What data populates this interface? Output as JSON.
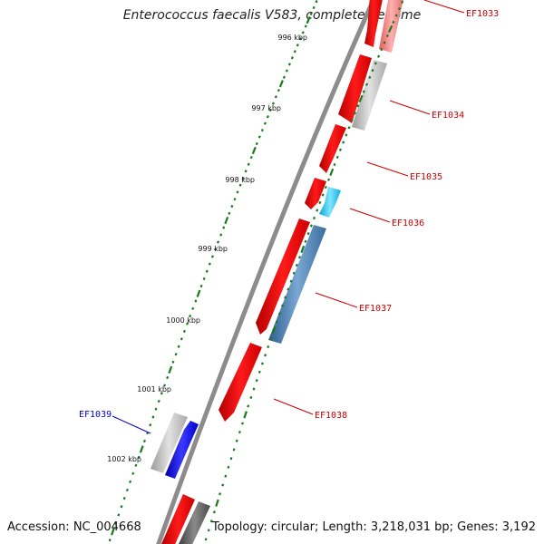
{
  "title": "Enterococcus faecalis V583, complete genome",
  "footer": {
    "accession": "Accession: NC_004668",
    "summary": "Topology: circular; Length: 3,218,031 bp; Genes: 3,192"
  },
  "ticks": [
    {
      "label": "996 kbp"
    },
    {
      "label": "997 kbp"
    },
    {
      "label": "998 kbp"
    },
    {
      "label": "999 kbp"
    },
    {
      "label": "1000 kbp"
    },
    {
      "label": "1001 kbp"
    },
    {
      "label": "1002 kbp"
    }
  ],
  "genes": [
    {
      "name": "EF1033",
      "strand": "forward",
      "color": "#cc0000"
    },
    {
      "name": "EF1034",
      "strand": "forward",
      "color": "#cc0000"
    },
    {
      "name": "EF1035",
      "strand": "forward",
      "color": "#cc0000"
    },
    {
      "name": "EF1036",
      "strand": "forward",
      "color": "#cc0000"
    },
    {
      "name": "EF1037",
      "strand": "forward",
      "color": "#cc0000"
    },
    {
      "name": "EF1038",
      "strand": "forward",
      "color": "#cc0000"
    },
    {
      "name": "EF1039",
      "strand": "reverse",
      "color": "#0000cc"
    }
  ],
  "colors": {
    "cds": "#ff0000",
    "tick": "#1a7a1a",
    "backbone": "#8c8c8c",
    "gray_feature": "#bdbdbd",
    "cyan_feature": "#1fc8f0",
    "steelblue_feature": "#4a7fb5",
    "blue_feature": "#0000ee"
  }
}
